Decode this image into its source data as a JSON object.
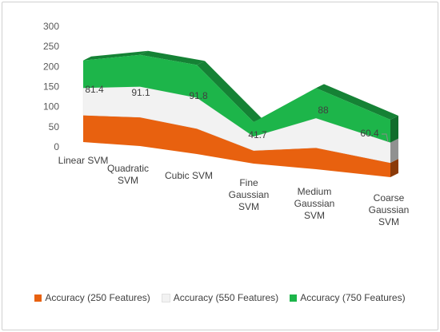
{
  "chart_data": {
    "type": "area",
    "style": "3d-stacked",
    "categories": [
      [
        "Linear SVM"
      ],
      [
        "Quadratic",
        "SVM"
      ],
      [
        "Cubic SVM"
      ],
      [
        "Fine",
        "Gaussian",
        "SVM"
      ],
      [
        "Medium",
        "Gaussian",
        "SVM"
      ],
      [
        "Coarse",
        "Gaussian",
        "SVM"
      ]
    ],
    "series": [
      {
        "name": "Accuracy (250 Features)",
        "color": "#e8610f",
        "values": [
          80,
          86,
          76,
          39,
          64,
          43
        ]
      },
      {
        "name": "Accuracy (550 Features)",
        "color": "#f2f2f2",
        "values": [
          81.4,
          91.1,
          91.8,
          41.7,
          88,
          60.4
        ]
      },
      {
        "name": "Accuracy (750 Features)",
        "color": "#1db54a",
        "values": [
          82,
          95,
          98,
          43,
          90,
          68
        ]
      }
    ],
    "data_labels": {
      "series_index": 1,
      "values": [
        "81.4",
        "91.1",
        "91.8",
        "41.7",
        "88",
        "60.4"
      ]
    },
    "yticks": [
      "0",
      "50",
      "100",
      "150",
      "200",
      "250",
      "300"
    ],
    "ylim": [
      0,
      300
    ],
    "legend_position": "bottom",
    "grid": false
  }
}
